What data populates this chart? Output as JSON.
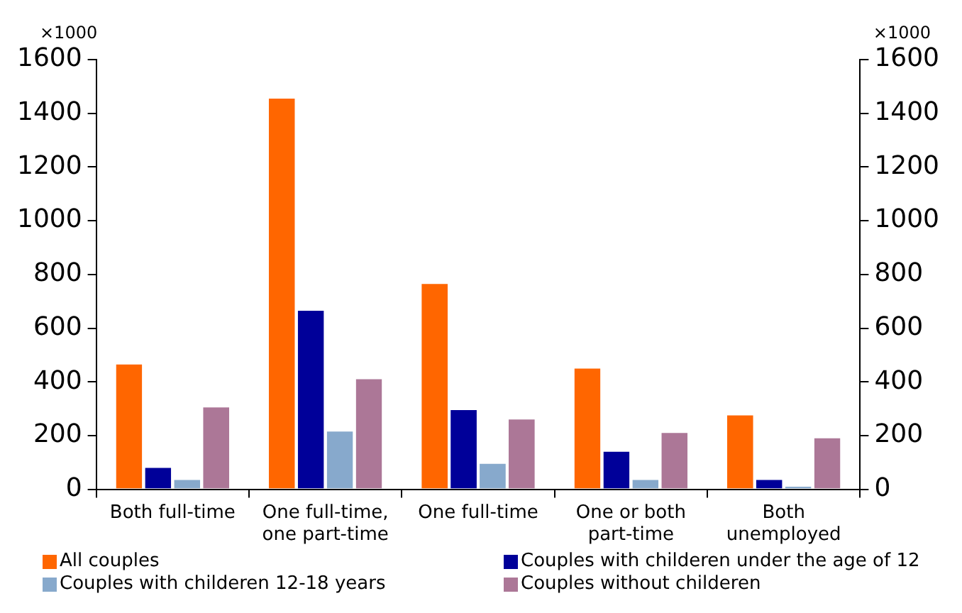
{
  "chart_data": {
    "type": "bar",
    "ylabel": "×1000",
    "y2label": "×1000",
    "categories": [
      "Both full-time",
      "One full-time, one part-time",
      "One full-time",
      "One or both part-time",
      "Both unemployed"
    ],
    "series": [
      {
        "name": "All couples",
        "color": "#ff6600",
        "values": [
          470,
          1460,
          770,
          455,
          280
        ]
      },
      {
        "name": "Couples with childeren under the age of 12",
        "color": "#000099",
        "values": [
          85,
          670,
          300,
          145,
          40
        ]
      },
      {
        "name": "Couples with childeren 12-18 years",
        "color": "#87a9cc",
        "values": [
          40,
          220,
          100,
          40,
          15
        ]
      },
      {
        "name": "Couples without childeren",
        "color": "#ac7797",
        "values": [
          310,
          415,
          265,
          215,
          195
        ]
      }
    ],
    "ylim": [
      0,
      1600
    ],
    "yticks": [
      0,
      200,
      400,
      600,
      800,
      1000,
      1200,
      1400,
      1600
    ],
    "y2lim": [
      0,
      1600
    ],
    "y2ticks": [
      0,
      200,
      400,
      600,
      800,
      1000,
      1200,
      1400,
      1600
    ],
    "grid": false,
    "legend": "bottom"
  }
}
